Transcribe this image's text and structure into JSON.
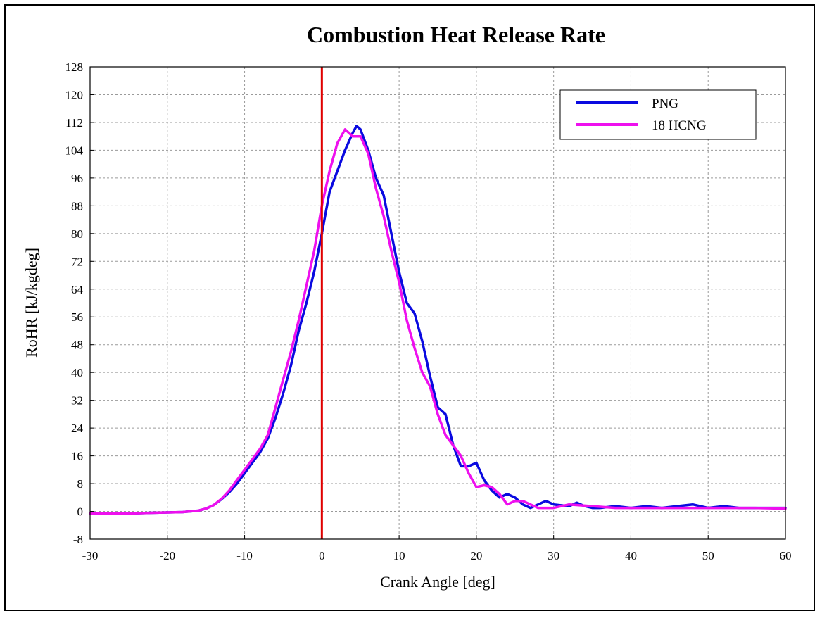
{
  "chart_data": {
    "type": "line",
    "title": "Combustion Heat Release Rate",
    "xlabel": "Crank Angle [deg]",
    "ylabel": "RoHR [kJ/kgdeg]",
    "xlim": [
      -30,
      60
    ],
    "ylim": [
      -8,
      128
    ],
    "xticks": [
      "-30",
      "-20",
      "-10",
      "0",
      "10",
      "20",
      "30",
      "40",
      "50",
      "60"
    ],
    "yticks": [
      "-8",
      "0",
      "8",
      "16",
      "24",
      "32",
      "40",
      "48",
      "56",
      "64",
      "72",
      "80",
      "88",
      "96",
      "104",
      "112",
      "120",
      "128"
    ],
    "grid": true,
    "legend_position": "top-right",
    "reference_line": {
      "x": 0,
      "color": "#e00000"
    },
    "series": [
      {
        "name": "PNG",
        "color": "#0a0ae0",
        "points": [
          [
            -30,
            -0.5
          ],
          [
            -25,
            -0.6
          ],
          [
            -22,
            -0.4
          ],
          [
            -20,
            -0.3
          ],
          [
            -18,
            -0.2
          ],
          [
            -16,
            0.2
          ],
          [
            -15,
            0.8
          ],
          [
            -14,
            1.8
          ],
          [
            -13,
            3.5
          ],
          [
            -12,
            5.5
          ],
          [
            -11,
            8
          ],
          [
            -10,
            11
          ],
          [
            -9,
            14
          ],
          [
            -8,
            17
          ],
          [
            -7,
            21
          ],
          [
            -6,
            27
          ],
          [
            -5,
            34
          ],
          [
            -4,
            42
          ],
          [
            -3,
            52
          ],
          [
            -2,
            60
          ],
          [
            -1,
            69
          ],
          [
            0,
            80
          ],
          [
            1,
            92
          ],
          [
            2,
            98
          ],
          [
            3,
            104
          ],
          [
            4,
            109
          ],
          [
            4.5,
            111
          ],
          [
            5,
            110
          ],
          [
            6,
            104
          ],
          [
            7,
            96
          ],
          [
            8,
            91
          ],
          [
            9,
            80
          ],
          [
            10,
            69
          ],
          [
            11,
            60
          ],
          [
            12,
            57
          ],
          [
            13,
            49
          ],
          [
            14,
            39
          ],
          [
            15,
            30
          ],
          [
            16,
            28
          ],
          [
            17,
            19
          ],
          [
            18,
            13
          ],
          [
            19,
            13
          ],
          [
            20,
            14
          ],
          [
            21,
            9
          ],
          [
            22,
            6
          ],
          [
            23,
            4
          ],
          [
            24,
            5
          ],
          [
            25,
            4
          ],
          [
            26,
            2
          ],
          [
            27,
            1
          ],
          [
            28,
            2
          ],
          [
            29,
            3
          ],
          [
            30,
            2
          ],
          [
            32,
            1.5
          ],
          [
            33,
            2.5
          ],
          [
            34,
            1.5
          ],
          [
            35,
            1
          ],
          [
            36,
            1
          ],
          [
            38,
            1.5
          ],
          [
            40,
            1
          ],
          [
            42,
            1.5
          ],
          [
            44,
            1
          ],
          [
            46,
            1.5
          ],
          [
            48,
            2
          ],
          [
            50,
            1
          ],
          [
            52,
            1.5
          ],
          [
            54,
            1
          ],
          [
            56,
            1
          ],
          [
            58,
            1
          ],
          [
            60,
            1
          ]
        ]
      },
      {
        "name": "18 HCNG",
        "color": "#ee10ee",
        "points": [
          [
            -30,
            -0.6
          ],
          [
            -25,
            -0.6
          ],
          [
            -22,
            -0.4
          ],
          [
            -20,
            -0.3
          ],
          [
            -18,
            -0.2
          ],
          [
            -16,
            0.2
          ],
          [
            -15,
            0.8
          ],
          [
            -14,
            1.8
          ],
          [
            -13,
            3.6
          ],
          [
            -12,
            6
          ],
          [
            -11,
            9
          ],
          [
            -10,
            12
          ],
          [
            -9,
            15
          ],
          [
            -8,
            18
          ],
          [
            -7,
            22
          ],
          [
            -6,
            30
          ],
          [
            -5,
            38
          ],
          [
            -4,
            46
          ],
          [
            -3,
            55
          ],
          [
            -2,
            65
          ],
          [
            -1,
            75
          ],
          [
            0,
            88
          ],
          [
            1,
            98
          ],
          [
            2,
            106
          ],
          [
            3,
            110
          ],
          [
            4,
            108
          ],
          [
            5,
            108
          ],
          [
            6,
            103
          ],
          [
            7,
            93
          ],
          [
            8,
            85
          ],
          [
            9,
            75
          ],
          [
            10,
            66
          ],
          [
            11,
            55
          ],
          [
            12,
            47
          ],
          [
            13,
            40
          ],
          [
            14,
            36
          ],
          [
            15,
            28
          ],
          [
            16,
            22
          ],
          [
            17,
            19
          ],
          [
            18,
            16
          ],
          [
            19,
            11
          ],
          [
            20,
            7
          ],
          [
            21,
            7.5
          ],
          [
            22,
            7
          ],
          [
            23,
            5
          ],
          [
            24,
            2
          ],
          [
            25,
            3
          ],
          [
            26,
            3
          ],
          [
            27,
            2
          ],
          [
            28,
            1
          ],
          [
            30,
            1
          ],
          [
            32,
            2
          ],
          [
            35,
            1.5
          ],
          [
            38,
            1
          ],
          [
            40,
            1
          ],
          [
            44,
            1
          ],
          [
            48,
            1
          ],
          [
            52,
            1
          ],
          [
            56,
            1
          ],
          [
            60,
            0.8
          ]
        ]
      }
    ]
  }
}
